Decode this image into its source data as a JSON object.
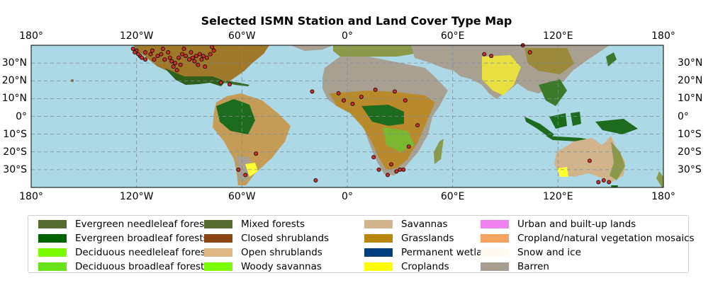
{
  "title": "Selected ISMN Station and Land Cover Type Map",
  "axes": {
    "lon_ticks": [
      {
        "value": -180,
        "label": "180°"
      },
      {
        "value": -120,
        "label": "120°W"
      },
      {
        "value": -60,
        "label": "60°W"
      },
      {
        "value": 0,
        "label": "0°"
      },
      {
        "value": 60,
        "label": "60°E"
      },
      {
        "value": 120,
        "label": "120°E"
      },
      {
        "value": 180,
        "label": "180°"
      }
    ],
    "lat_ticks": [
      {
        "value": 30,
        "label": "30°N"
      },
      {
        "value": 20,
        "label": "20°N"
      },
      {
        "value": 10,
        "label": "10°N"
      },
      {
        "value": 0,
        "label": "0°"
      },
      {
        "value": -10,
        "label": "10°S"
      },
      {
        "value": -20,
        "label": "20°S"
      },
      {
        "value": -30,
        "label": "30°S"
      }
    ],
    "lon_range": [
      -180,
      180
    ],
    "lat_range": [
      -40,
      40
    ],
    "gridlines": true,
    "ocean_color": "#add8e6"
  },
  "legend": {
    "columns": [
      [
        {
          "label": "Evergreen needleleaf forests",
          "color": "#556b2f"
        },
        {
          "label": "Evergreen broadleaf forests",
          "color": "#006400"
        },
        {
          "label": "Deciduous needleleaf forests",
          "color": "#7cfc00"
        },
        {
          "label": "Deciduous broadleaf forests",
          "color": "#66e31a"
        }
      ],
      [
        {
          "label": "Mixed forests",
          "color": "#556b2f"
        },
        {
          "label": "Closed shrublands",
          "color": "#8b4513"
        },
        {
          "label": "Open shrublands",
          "color": "#deb887"
        },
        {
          "label": "Woody savannas",
          "color": "#7cfc00"
        }
      ],
      [
        {
          "label": "Savannas",
          "color": "#d2b48c"
        },
        {
          "label": "Grasslands",
          "color": "#b8860b"
        },
        {
          "label": "Permanent wetlands",
          "color": "#003f7f"
        },
        {
          "label": "Croplands",
          "color": "#ffff00"
        }
      ],
      [
        {
          "label": "Urban and built-up lands",
          "color": "#ee82ee"
        },
        {
          "label": "Cropland/natural vegetation mosaics",
          "color": "#f4a460"
        },
        {
          "label": "Snow and ice",
          "color": "#fffaf0"
        },
        {
          "label": "Barren",
          "color": "#a89f91"
        }
      ]
    ]
  },
  "stations": [
    [
      -122,
      38
    ],
    [
      -120,
      37
    ],
    [
      -118,
      34
    ],
    [
      -117,
      33
    ],
    [
      -115,
      36
    ],
    [
      -112,
      35
    ],
    [
      -110,
      32
    ],
    [
      -108,
      34
    ],
    [
      -106,
      35
    ],
    [
      -104,
      32
    ],
    [
      -100,
      31
    ],
    [
      -98,
      30
    ],
    [
      -96,
      33
    ],
    [
      -94,
      35
    ],
    [
      -92,
      34
    ],
    [
      -90,
      32
    ],
    [
      -88,
      33
    ],
    [
      -86,
      34
    ],
    [
      -84,
      35
    ],
    [
      -82,
      34
    ],
    [
      -80,
      33
    ],
    [
      -78,
      35
    ],
    [
      -76,
      37
    ],
    [
      -97,
      26
    ],
    [
      -99,
      28
    ],
    [
      -95,
      29
    ],
    [
      -85,
      29
    ],
    [
      -81,
      28
    ],
    [
      -87,
      31
    ],
    [
      -115,
      32
    ],
    [
      -119,
      35
    ],
    [
      -121,
      36
    ],
    [
      -102,
      36
    ],
    [
      -89,
      36
    ],
    [
      -83,
      32
    ],
    [
      -105,
      38
    ],
    [
      -111,
      37
    ],
    [
      -93,
      38
    ],
    [
      -77,
      39
    ],
    [
      -101,
      33
    ],
    [
      -67,
      18
    ],
    [
      -72,
      19
    ],
    [
      -20,
      14
    ],
    [
      -5,
      13
    ],
    [
      -2,
      9
    ],
    [
      3,
      7
    ],
    [
      8,
      11
    ],
    [
      16,
      15
    ],
    [
      27,
      14
    ],
    [
      33,
      9
    ],
    [
      40,
      -5
    ],
    [
      35,
      -17
    ],
    [
      15,
      -23
    ],
    [
      18,
      -30
    ],
    [
      25,
      -27
    ],
    [
      28,
      -31
    ],
    [
      30,
      -30
    ],
    [
      32,
      -30
    ],
    [
      23,
      -33
    ],
    [
      -18,
      -36
    ],
    [
      -62,
      -30
    ],
    [
      -58,
      -33
    ],
    [
      -52,
      -21
    ],
    [
      78,
      35
    ],
    [
      82,
      34
    ],
    [
      100,
      40
    ],
    [
      104,
      36
    ],
    [
      138,
      -25
    ],
    [
      143,
      -37
    ],
    [
      146,
      -36
    ],
    [
      149,
      -37
    ]
  ]
}
